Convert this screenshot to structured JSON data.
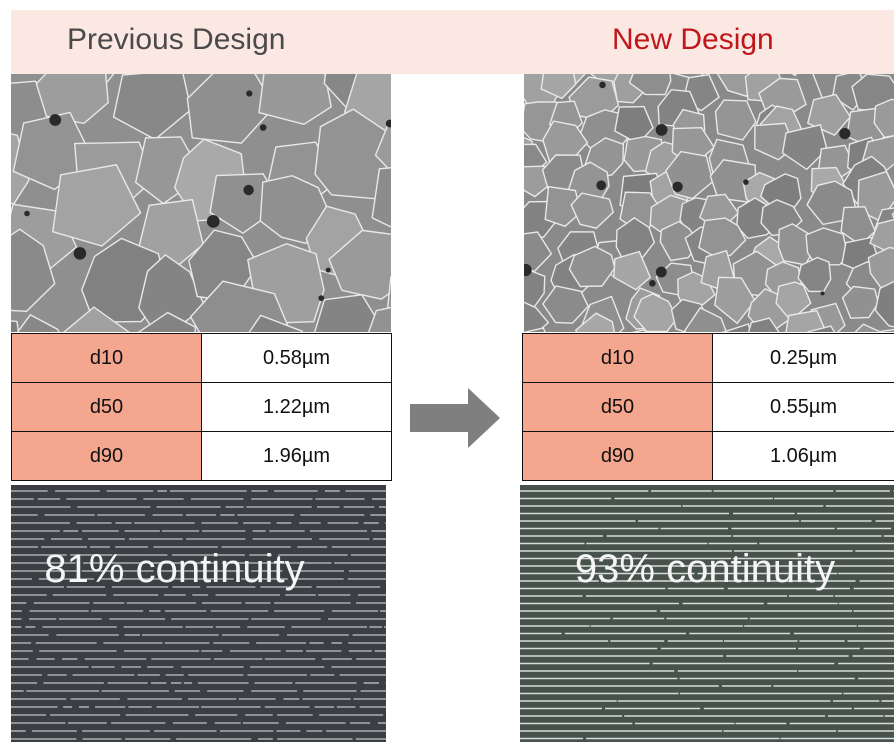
{
  "headers": {
    "previous": "Previous Design",
    "new": "New Design"
  },
  "colors": {
    "header_band": "#fce8e2",
    "previous_title": "#4a4a4a",
    "new_title": "#c0171b",
    "table_key_cell": "#f4a68e",
    "arrow": "#7f7f7f"
  },
  "previous": {
    "grain_size_table": [
      {
        "label": "d10",
        "value": "0.58µm"
      },
      {
        "label": "d50",
        "value": "1.22µm"
      },
      {
        "label": "d90",
        "value": "1.96µm"
      }
    ],
    "continuity_text": "81% continuity"
  },
  "new": {
    "grain_size_table": [
      {
        "label": "d10",
        "value": "0.25µm"
      },
      {
        "label": "d50",
        "value": "0.55µm"
      },
      {
        "label": "d90",
        "value": "1.06µm"
      }
    ],
    "continuity_text": "93% continuity"
  },
  "icons": {
    "transition_arrow": "arrow-right-icon"
  }
}
